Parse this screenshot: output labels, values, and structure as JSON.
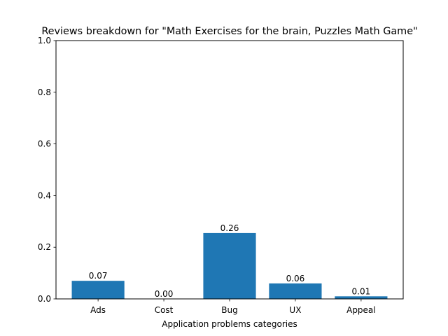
{
  "chart_data": {
    "type": "bar",
    "title": "Reviews breakdown for \"Math Exercises for the brain, Puzzles Math Game\"",
    "xlabel": "Application problems categories",
    "ylabel": "",
    "categories": [
      "Ads",
      "Cost",
      "Bug",
      "UX",
      "Appeal"
    ],
    "values": [
      0.07,
      0.0,
      0.255,
      0.06,
      0.01
    ],
    "value_labels": [
      "0.07",
      "0.00",
      "0.26",
      "0.06",
      "0.01"
    ],
    "ylim": [
      0,
      1.0
    ],
    "yticks": [
      0.0,
      0.2,
      0.4,
      0.6,
      0.8,
      1.0
    ],
    "ytick_labels": [
      "0.0",
      "0.2",
      "0.4",
      "0.6",
      "0.8",
      "1.0"
    ],
    "bar_color": "#1f77b4",
    "grid": false,
    "legend": "none"
  }
}
